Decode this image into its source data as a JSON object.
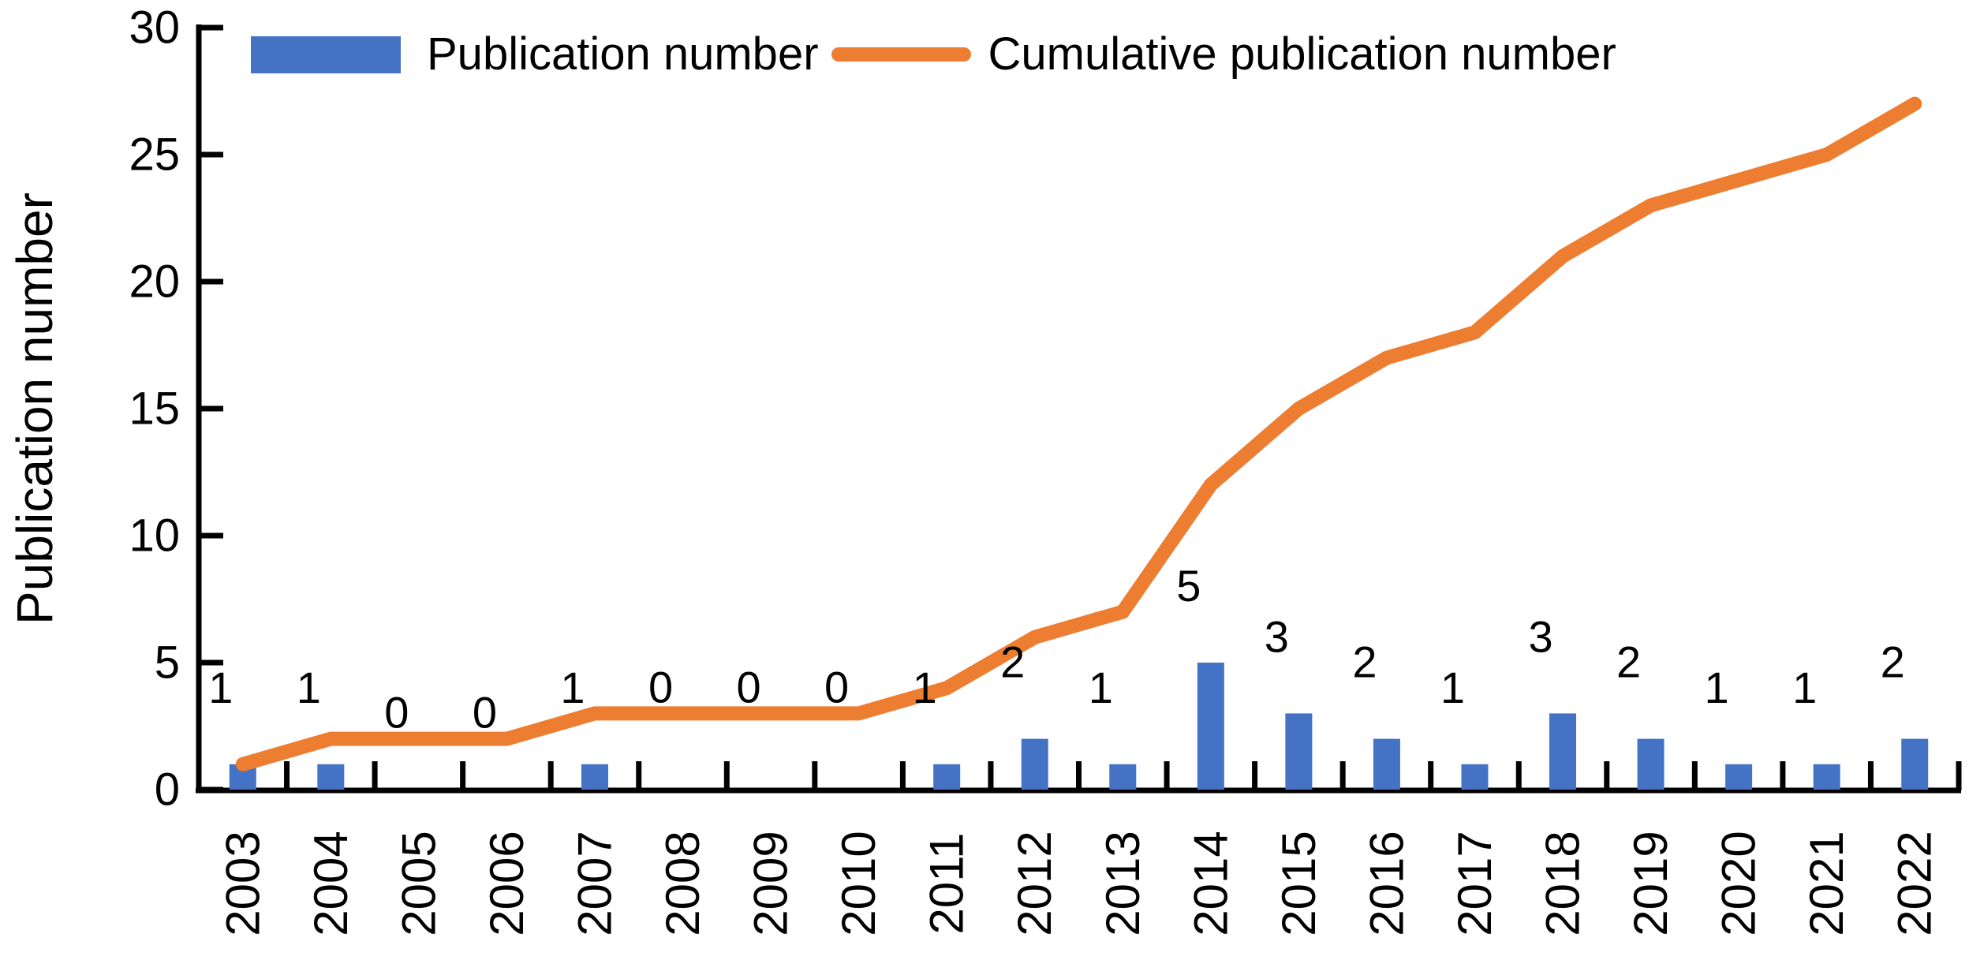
{
  "chart_data": {
    "type": "bar",
    "subtype": "bar-line-combo",
    "categories": [
      "2003",
      "2004",
      "2005",
      "2006",
      "2007",
      "2008",
      "2009",
      "2010",
      "2011",
      "2012",
      "2013",
      "2014",
      "2015",
      "2016",
      "2017",
      "2018",
      "2019",
      "2020",
      "2021",
      "2022"
    ],
    "series": [
      {
        "name": "Publication number",
        "type": "bar",
        "color": "#4472C4",
        "values": [
          1,
          1,
          0,
          0,
          1,
          0,
          0,
          0,
          1,
          2,
          1,
          5,
          3,
          2,
          1,
          3,
          2,
          1,
          1,
          2
        ]
      },
      {
        "name": "Cumulative publication number",
        "type": "line",
        "color": "#ED7D31",
        "values": [
          1,
          2,
          2,
          2,
          3,
          3,
          3,
          3,
          4,
          6,
          7,
          12,
          15,
          17,
          18,
          21,
          23,
          24,
          25,
          27
        ]
      }
    ],
    "bar_data_labels": [
      "1",
      "1",
      "0",
      "0",
      "1",
      "0",
      "0",
      "0",
      "1",
      "2",
      "1",
      "5",
      "3",
      "2",
      "1",
      "3",
      "2",
      "1",
      "1",
      "2"
    ],
    "title": "",
    "xlabel": "",
    "ylabel": "Publication number",
    "ylim": [
      0,
      30
    ],
    "yticks": [
      0,
      5,
      10,
      15,
      20,
      25,
      30
    ],
    "grid": false,
    "legend_position": "top",
    "axis_color": "#000000",
    "text_color": "#000000"
  }
}
